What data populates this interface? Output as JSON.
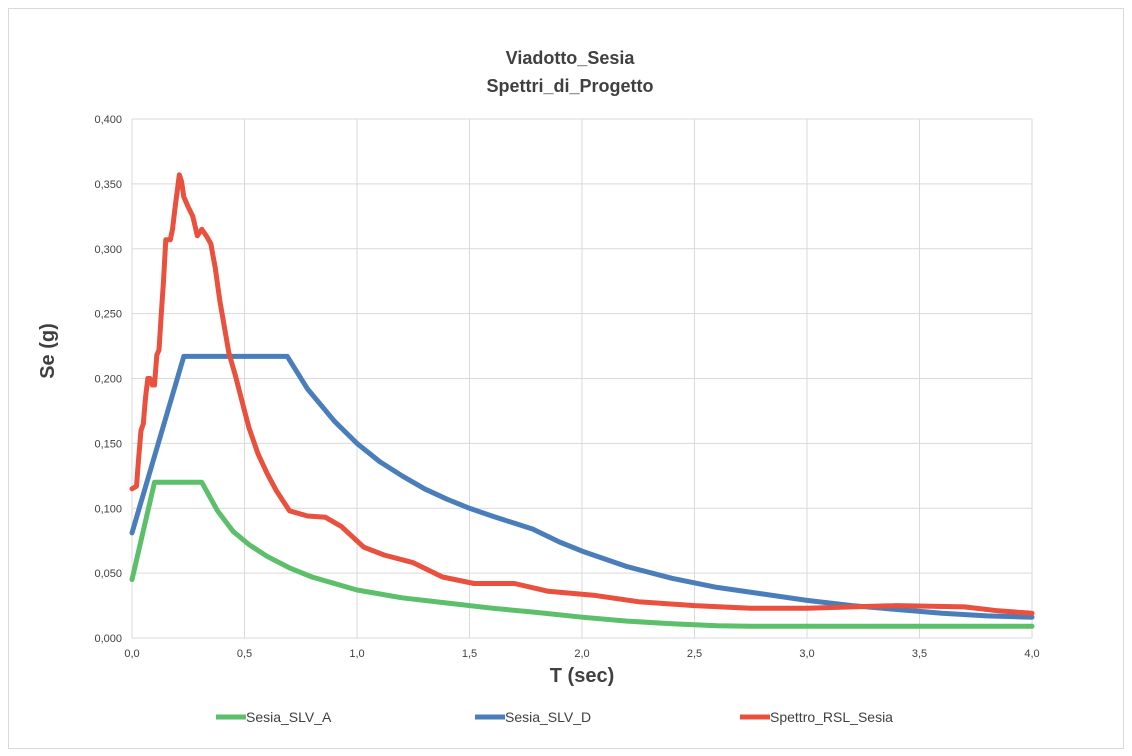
{
  "chart_data": {
    "type": "line",
    "title": "Viadotto_Sesia",
    "subtitle": "Spettri_di_Progetto",
    "xlabel": "T (sec)",
    "ylabel": "Se (g)",
    "xlim": [
      0,
      4
    ],
    "ylim": [
      0,
      0.4
    ],
    "x_ticks": [
      "0,0",
      "0,5",
      "1,0",
      "1,5",
      "2,0",
      "2,5",
      "3,0",
      "3,5",
      "4,0"
    ],
    "y_ticks": [
      "0,000",
      "0,050",
      "0,100",
      "0,150",
      "0,200",
      "0,250",
      "0,300",
      "0,350",
      "0,400"
    ],
    "grid": true,
    "legend_position": "bottom",
    "series": [
      {
        "name": "Sesia_SLV_A",
        "color": "#5cbf6a",
        "points": [
          [
            0.0,
            0.045
          ],
          [
            0.1,
            0.12
          ],
          [
            0.2,
            0.12
          ],
          [
            0.31,
            0.12
          ],
          [
            0.38,
            0.098
          ],
          [
            0.45,
            0.082
          ],
          [
            0.52,
            0.072
          ],
          [
            0.6,
            0.063
          ],
          [
            0.7,
            0.054
          ],
          [
            0.8,
            0.047
          ],
          [
            0.9,
            0.042
          ],
          [
            1.0,
            0.037
          ],
          [
            1.2,
            0.031
          ],
          [
            1.4,
            0.027
          ],
          [
            1.6,
            0.023
          ],
          [
            1.78,
            0.02
          ],
          [
            2.0,
            0.016
          ],
          [
            2.2,
            0.013
          ],
          [
            2.4,
            0.011
          ],
          [
            2.6,
            0.0095
          ],
          [
            2.75,
            0.009
          ],
          [
            3.0,
            0.009
          ],
          [
            3.5,
            0.009
          ],
          [
            4.0,
            0.009
          ]
        ]
      },
      {
        "name": "Sesia_SLV_D",
        "color": "#4a7ebb",
        "points": [
          [
            0.0,
            0.081
          ],
          [
            0.23,
            0.217
          ],
          [
            0.69,
            0.217
          ],
          [
            0.78,
            0.192
          ],
          [
            0.9,
            0.167
          ],
          [
            1.0,
            0.15
          ],
          [
            1.1,
            0.136
          ],
          [
            1.2,
            0.125
          ],
          [
            1.3,
            0.115
          ],
          [
            1.4,
            0.107
          ],
          [
            1.5,
            0.1
          ],
          [
            1.6,
            0.094
          ],
          [
            1.78,
            0.084
          ],
          [
            1.9,
            0.074
          ],
          [
            2.0,
            0.067
          ],
          [
            2.2,
            0.055
          ],
          [
            2.4,
            0.046
          ],
          [
            2.6,
            0.039
          ],
          [
            2.8,
            0.034
          ],
          [
            3.0,
            0.029
          ],
          [
            3.2,
            0.025
          ],
          [
            3.4,
            0.022
          ],
          [
            3.6,
            0.019
          ],
          [
            3.8,
            0.017
          ],
          [
            4.0,
            0.016
          ]
        ]
      },
      {
        "name": "Spettro_RSL_Sesia",
        "color": "#e9503d",
        "points": [
          [
            0.0,
            0.115
          ],
          [
            0.02,
            0.117
          ],
          [
            0.03,
            0.14
          ],
          [
            0.04,
            0.16
          ],
          [
            0.05,
            0.165
          ],
          [
            0.06,
            0.185
          ],
          [
            0.07,
            0.2
          ],
          [
            0.08,
            0.2
          ],
          [
            0.09,
            0.195
          ],
          [
            0.1,
            0.195
          ],
          [
            0.11,
            0.218
          ],
          [
            0.12,
            0.222
          ],
          [
            0.13,
            0.25
          ],
          [
            0.14,
            0.275
          ],
          [
            0.15,
            0.307
          ],
          [
            0.17,
            0.307
          ],
          [
            0.18,
            0.315
          ],
          [
            0.19,
            0.33
          ],
          [
            0.2,
            0.343
          ],
          [
            0.21,
            0.357
          ],
          [
            0.22,
            0.352
          ],
          [
            0.23,
            0.34
          ],
          [
            0.25,
            0.332
          ],
          [
            0.27,
            0.325
          ],
          [
            0.29,
            0.31
          ],
          [
            0.31,
            0.315
          ],
          [
            0.33,
            0.31
          ],
          [
            0.35,
            0.304
          ],
          [
            0.37,
            0.285
          ],
          [
            0.39,
            0.26
          ],
          [
            0.41,
            0.24
          ],
          [
            0.43,
            0.22
          ],
          [
            0.46,
            0.202
          ],
          [
            0.5,
            0.175
          ],
          [
            0.52,
            0.162
          ],
          [
            0.56,
            0.142
          ],
          [
            0.6,
            0.127
          ],
          [
            0.64,
            0.114
          ],
          [
            0.7,
            0.098
          ],
          [
            0.78,
            0.094
          ],
          [
            0.86,
            0.093
          ],
          [
            0.93,
            0.086
          ],
          [
            1.03,
            0.07
          ],
          [
            1.12,
            0.064
          ],
          [
            1.25,
            0.058
          ],
          [
            1.38,
            0.047
          ],
          [
            1.52,
            0.042
          ],
          [
            1.7,
            0.042
          ],
          [
            1.85,
            0.036
          ],
          [
            2.05,
            0.033
          ],
          [
            2.25,
            0.028
          ],
          [
            2.5,
            0.025
          ],
          [
            2.75,
            0.023
          ],
          [
            3.0,
            0.023
          ],
          [
            3.2,
            0.024
          ],
          [
            3.4,
            0.025
          ],
          [
            3.7,
            0.024
          ],
          [
            3.85,
            0.021
          ],
          [
            4.0,
            0.019
          ]
        ]
      }
    ]
  }
}
